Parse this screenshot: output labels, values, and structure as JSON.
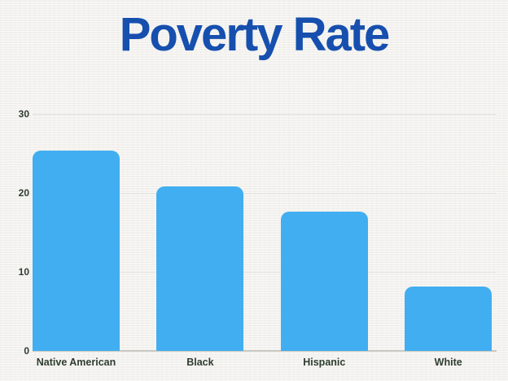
{
  "title": {
    "text": "Poverty Rate",
    "color": "#164fae"
  },
  "chart_data": {
    "type": "bar",
    "title": "Poverty Rate",
    "categories": [
      "Native American",
      "Black",
      "Hispanic",
      "White"
    ],
    "values": [
      25.4,
      20.8,
      17.6,
      8.1
    ],
    "xlabel": "",
    "ylabel": "",
    "ylim": [
      0,
      30
    ],
    "yticks": [
      0,
      10,
      20,
      30
    ],
    "grid": true,
    "legend": "none",
    "bar_color": "#41aef1",
    "tick_label_color": "#2f3d2f",
    "gridline_color": "#e3e3de",
    "axis_line_color": "#c9c9c3",
    "background_color": "#f2f1ee",
    "title_color": "#164fae"
  }
}
